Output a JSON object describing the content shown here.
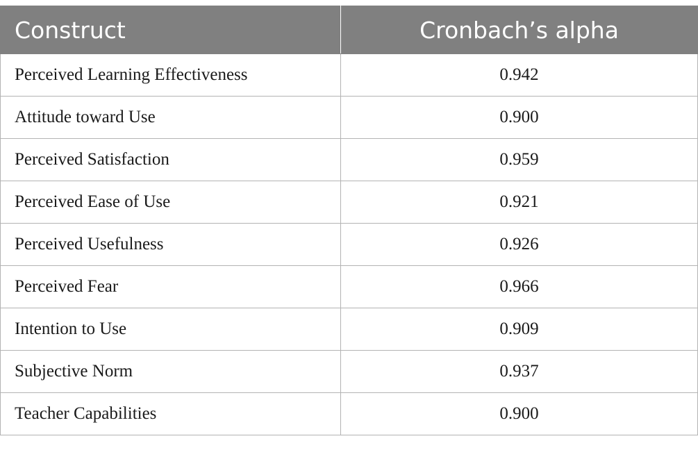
{
  "table": {
    "headers": [
      "Construct",
      "Cronbach’s alpha"
    ],
    "rows": [
      {
        "construct": "Perceived Learning Effectiveness",
        "alpha": "0.942"
      },
      {
        "construct": "Attitude toward Use",
        "alpha": "0.900"
      },
      {
        "construct": "Perceived Satisfaction",
        "alpha": "0.959"
      },
      {
        "construct": "Perceived Ease of Use",
        "alpha": "0.921"
      },
      {
        "construct": "Perceived Usefulness",
        "alpha": "0.926"
      },
      {
        "construct": "Perceived Fear",
        "alpha": "0.966"
      },
      {
        "construct": "Intention to Use",
        "alpha": "0.909"
      },
      {
        "construct": "Subjective Norm",
        "alpha": "0.937"
      },
      {
        "construct": "Teacher Capabilities",
        "alpha": "0.900"
      }
    ]
  },
  "colors": {
    "header_bg": "#808080",
    "header_text": "#ffffff",
    "grid_line": "#b3b3b3"
  }
}
